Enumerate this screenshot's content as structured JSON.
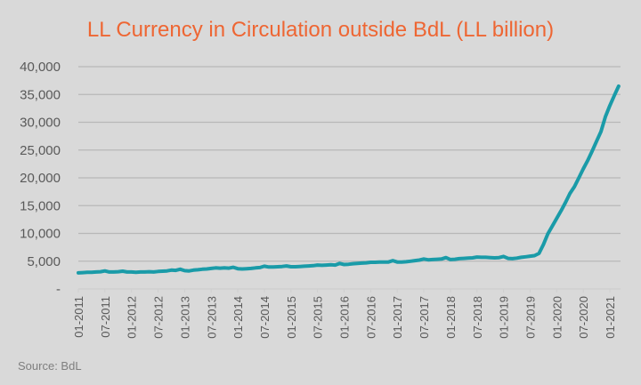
{
  "chart_data": {
    "type": "line",
    "title": "LL Currency in Circulation outside BdL (LL billion)",
    "source": "Source: BdL",
    "xlabel": "",
    "ylabel": "",
    "ylim": [
      0,
      40000
    ],
    "yticks": [
      0,
      5000,
      10000,
      15000,
      20000,
      25000,
      30000,
      35000,
      40000
    ],
    "ytick_labels": [
      "-",
      "5,000",
      "10,000",
      "15,000",
      "20,000",
      "25,000",
      "30,000",
      "35,000",
      "40,000"
    ],
    "xtick_labels": [
      "01-2011",
      "07-2011",
      "01-2012",
      "07-2012",
      "01-2013",
      "07-2013",
      "01-2014",
      "07-2014",
      "01-2015",
      "07-2015",
      "01-2016",
      "07-2016",
      "01-2017",
      "07-2017",
      "01-2018",
      "07-2018",
      "01-2019",
      "07-2019",
      "01-2020",
      "07-2020",
      "01-2021"
    ],
    "grid": true,
    "legend": "none",
    "start_month": "01-2011",
    "frequency": "monthly",
    "series": [
      {
        "name": "LL Currency in Circulation outside BdL",
        "color": "#1a9ba8",
        "values": [
          2900,
          2950,
          3000,
          3000,
          3050,
          3100,
          3250,
          3050,
          3050,
          3100,
          3200,
          3050,
          3050,
          3000,
          3050,
          3050,
          3100,
          3050,
          3150,
          3200,
          3250,
          3400,
          3350,
          3550,
          3300,
          3250,
          3400,
          3450,
          3550,
          3600,
          3700,
          3800,
          3750,
          3800,
          3750,
          3900,
          3650,
          3600,
          3650,
          3700,
          3800,
          3850,
          4100,
          3950,
          3950,
          4000,
          4050,
          4150,
          4000,
          4000,
          4050,
          4100,
          4150,
          4200,
          4300,
          4250,
          4300,
          4350,
          4300,
          4600,
          4400,
          4450,
          4550,
          4600,
          4650,
          4700,
          4800,
          4800,
          4850,
          4850,
          4850,
          5100,
          4850,
          4850,
          4900,
          5000,
          5100,
          5200,
          5400,
          5250,
          5300,
          5350,
          5400,
          5650,
          5300,
          5350,
          5450,
          5500,
          5550,
          5600,
          5750,
          5700,
          5700,
          5650,
          5600,
          5650,
          5850,
          5500,
          5450,
          5550,
          5700,
          5800,
          5900,
          6000,
          6400,
          8000,
          9900,
          11300,
          12700,
          14100,
          15600,
          17200,
          18400,
          20000,
          21600,
          23100,
          24800,
          26600,
          28300,
          31000,
          33000,
          34800,
          36500
        ]
      }
    ]
  }
}
